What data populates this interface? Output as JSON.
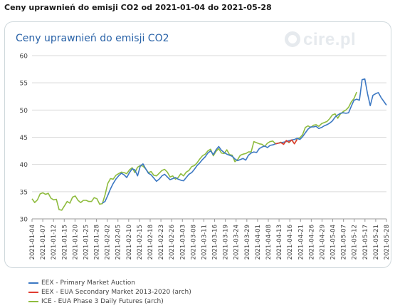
{
  "page_title": "Ceny uprawnień do emisji CO2 od 2021-01-04 do 2021-05-28",
  "logo_text": "cire.pl",
  "chart_data": {
    "type": "line",
    "title": "Ceny uprawnień do emisji CO2",
    "ylim": [
      30,
      60
    ],
    "yticks": [
      30,
      35,
      40,
      45,
      50,
      55,
      60
    ],
    "grid": "horizontal",
    "legend_position": "bottom-left",
    "x_tick_labels": [
      "2021-01-04",
      "2021-01-07",
      "2021-01-12",
      "2021-01-15",
      "2021-01-20",
      "2021-01-25",
      "2021-01-28",
      "2021-02-02",
      "2021-02-05",
      "2021-02-10",
      "2021-02-15",
      "2021-02-18",
      "2021-02-23",
      "2021-02-26",
      "2021-03-03",
      "2021-03-08",
      "2021-03-11",
      "2021-03-16",
      "2021-03-19",
      "2021-03-24",
      "2021-03-29",
      "2021-04-01",
      "2021-04-08",
      "2021-04-13",
      "2021-04-16",
      "2021-04-21",
      "2021-04-26",
      "2021-04-29",
      "2021-05-04",
      "2021-05-07",
      "2021-05-12",
      "2021-05-17",
      "2021-05-21",
      "2021-05-28"
    ],
    "series": [
      {
        "name": "EEX - Primary Market Auction",
        "color": "#3c78c3",
        "points": [
          [
            26,
            32.9
          ],
          [
            27,
            33.2
          ],
          [
            28,
            34.3
          ],
          [
            29,
            35.5
          ],
          [
            30,
            36.5
          ],
          [
            31,
            37.3
          ],
          [
            32,
            37.9
          ],
          [
            33,
            38.4
          ],
          [
            34,
            38.1
          ],
          [
            35,
            37.6
          ],
          [
            36,
            38.5
          ],
          [
            37,
            39.2
          ],
          [
            38,
            39.0
          ],
          [
            39,
            37.9
          ],
          [
            40,
            39.7
          ],
          [
            41,
            40.1
          ],
          [
            42,
            39.2
          ],
          [
            43,
            38.4
          ],
          [
            44,
            38.1
          ],
          [
            45,
            37.5
          ],
          [
            46,
            36.9
          ],
          [
            47,
            37.3
          ],
          [
            48,
            37.9
          ],
          [
            49,
            38.2
          ],
          [
            50,
            37.7
          ],
          [
            51,
            37.2
          ],
          [
            52,
            37.4
          ],
          [
            53,
            37.6
          ],
          [
            54,
            37.3
          ],
          [
            55,
            37.1
          ],
          [
            56,
            37.0
          ],
          [
            57,
            37.6
          ],
          [
            58,
            38.2
          ],
          [
            59,
            38.5
          ],
          [
            60,
            39.1
          ],
          [
            61,
            39.8
          ],
          [
            62,
            40.3
          ],
          [
            63,
            40.9
          ],
          [
            64,
            41.4
          ],
          [
            65,
            42.1
          ],
          [
            66,
            42.5
          ],
          [
            67,
            41.8
          ],
          [
            68,
            42.7
          ],
          [
            69,
            43.3
          ],
          [
            70,
            42.6
          ],
          [
            71,
            42.2
          ],
          [
            72,
            41.9
          ],
          [
            73,
            41.7
          ],
          [
            74,
            41.5
          ],
          [
            75,
            41.0
          ],
          [
            76,
            40.7
          ],
          [
            77,
            40.9
          ],
          [
            78,
            41.1
          ],
          [
            79,
            40.8
          ],
          [
            80,
            41.7
          ],
          [
            81,
            42.1
          ],
          [
            82,
            42.3
          ],
          [
            83,
            42.2
          ],
          [
            84,
            42.9
          ],
          [
            85,
            43.2
          ],
          [
            86,
            43.4
          ],
          [
            87,
            43.1
          ],
          [
            88,
            43.5
          ],
          [
            89,
            43.6
          ],
          [
            90,
            43.8
          ],
          [
            91,
            43.9
          ],
          [
            92,
            44.0
          ],
          [
            93,
            44.1
          ],
          [
            94,
            44.2
          ],
          [
            95,
            44.4
          ],
          [
            96,
            44.5
          ],
          [
            97,
            44.6
          ],
          [
            98,
            44.8
          ],
          [
            99,
            44.6
          ],
          [
            100,
            45.1
          ],
          [
            101,
            45.8
          ],
          [
            102,
            46.5
          ],
          [
            103,
            46.9
          ],
          [
            104,
            46.9
          ],
          [
            105,
            47.0
          ],
          [
            106,
            46.6
          ],
          [
            107,
            46.8
          ],
          [
            108,
            47.1
          ],
          [
            109,
            47.3
          ],
          [
            110,
            47.6
          ],
          [
            111,
            48.0
          ],
          [
            112,
            48.7
          ],
          [
            113,
            49.1
          ],
          [
            114,
            49.4
          ],
          [
            115,
            49.5
          ],
          [
            116,
            49.4
          ],
          [
            117,
            49.5
          ],
          [
            118,
            50.7
          ],
          [
            119,
            51.8
          ],
          [
            120,
            52.0
          ],
          [
            121,
            51.8
          ],
          [
            122,
            55.6
          ],
          [
            123,
            55.7
          ],
          [
            124,
            53.0
          ],
          [
            125,
            50.8
          ],
          [
            126,
            52.7
          ],
          [
            127,
            53.0
          ],
          [
            128,
            53.2
          ],
          [
            129,
            52.3
          ],
          [
            130,
            51.6
          ],
          [
            131,
            50.9
          ]
        ]
      },
      {
        "name": "EEX - EUA Secondary Market 2013-2020 (arch)",
        "color": "#e03c31",
        "points": [
          [
            90,
            43.8
          ],
          [
            91,
            43.9
          ],
          [
            92,
            44.0
          ],
          [
            93,
            43.7
          ],
          [
            94,
            44.4
          ],
          [
            95,
            44.1
          ],
          [
            96,
            44.5
          ],
          [
            97,
            43.8
          ],
          [
            98,
            44.6
          ]
        ]
      },
      {
        "name": "ICE - EUA Phase 3 Daily Futures (arch)",
        "color": "#8fbc3f",
        "points": [
          [
            0,
            33.7
          ],
          [
            1,
            33.0
          ],
          [
            2,
            33.5
          ],
          [
            3,
            34.6
          ],
          [
            4,
            34.8
          ],
          [
            5,
            34.5
          ],
          [
            6,
            34.7
          ],
          [
            7,
            33.8
          ],
          [
            8,
            33.5
          ],
          [
            9,
            33.6
          ],
          [
            10,
            31.7
          ],
          [
            11,
            31.6
          ],
          [
            12,
            32.4
          ],
          [
            13,
            33.2
          ],
          [
            14,
            32.9
          ],
          [
            15,
            34.0
          ],
          [
            16,
            34.2
          ],
          [
            17,
            33.4
          ],
          [
            18,
            33.0
          ],
          [
            19,
            33.4
          ],
          [
            20,
            33.4
          ],
          [
            21,
            33.2
          ],
          [
            22,
            33.2
          ],
          [
            23,
            33.9
          ],
          [
            24,
            33.7
          ],
          [
            25,
            32.7
          ],
          [
            26,
            32.8
          ],
          [
            27,
            34.4
          ],
          [
            28,
            36.5
          ],
          [
            29,
            37.4
          ],
          [
            30,
            37.3
          ],
          [
            31,
            38.0
          ],
          [
            32,
            38.3
          ],
          [
            33,
            38.6
          ],
          [
            34,
            38.5
          ],
          [
            35,
            38.3
          ],
          [
            36,
            39.0
          ],
          [
            37,
            39.4
          ],
          [
            38,
            38.5
          ],
          [
            39,
            39.5
          ],
          [
            40,
            39.8
          ],
          [
            41,
            39.7
          ],
          [
            42,
            39.2
          ],
          [
            43,
            38.5
          ],
          [
            44,
            38.7
          ],
          [
            45,
            38.0
          ],
          [
            46,
            37.9
          ],
          [
            47,
            38.4
          ],
          [
            48,
            38.9
          ],
          [
            49,
            39.1
          ],
          [
            50,
            38.6
          ],
          [
            51,
            37.7
          ],
          [
            52,
            37.9
          ],
          [
            53,
            37.3
          ],
          [
            54,
            37.6
          ],
          [
            55,
            38.3
          ],
          [
            56,
            37.9
          ],
          [
            57,
            38.6
          ],
          [
            58,
            38.9
          ],
          [
            59,
            39.6
          ],
          [
            60,
            39.8
          ],
          [
            61,
            40.3
          ],
          [
            62,
            41.0
          ],
          [
            63,
            41.6
          ],
          [
            64,
            41.9
          ],
          [
            65,
            42.5
          ],
          [
            66,
            42.8
          ],
          [
            67,
            41.6
          ],
          [
            68,
            42.4
          ],
          [
            69,
            42.9
          ],
          [
            70,
            42.1
          ],
          [
            71,
            42.0
          ],
          [
            72,
            42.7
          ],
          [
            73,
            41.8
          ],
          [
            74,
            41.7
          ],
          [
            75,
            40.5
          ],
          [
            76,
            40.9
          ],
          [
            77,
            41.7
          ],
          [
            78,
            41.9
          ],
          [
            79,
            42.0
          ],
          [
            80,
            42.3
          ],
          [
            81,
            42.3
          ],
          [
            82,
            44.2
          ],
          [
            83,
            44.0
          ],
          [
            84,
            43.8
          ],
          [
            85,
            43.7
          ],
          [
            86,
            43.3
          ],
          [
            87,
            43.9
          ],
          [
            88,
            44.2
          ],
          [
            89,
            44.3
          ],
          [
            90,
            43.8
          ],
          [
            91,
            43.9
          ],
          [
            92,
            44.1
          ],
          [
            93,
            43.7
          ],
          [
            94,
            44.4
          ],
          [
            95,
            44.0
          ],
          [
            96,
            44.5
          ],
          [
            97,
            43.8
          ],
          [
            98,
            44.7
          ],
          [
            99,
            44.9
          ],
          [
            100,
            45.5
          ],
          [
            101,
            46.8
          ],
          [
            102,
            47.1
          ],
          [
            103,
            46.8
          ],
          [
            104,
            47.2
          ],
          [
            105,
            47.3
          ],
          [
            106,
            47.0
          ],
          [
            107,
            47.5
          ],
          [
            108,
            47.7
          ],
          [
            109,
            47.9
          ],
          [
            110,
            48.4
          ],
          [
            111,
            49.1
          ],
          [
            112,
            49.3
          ],
          [
            113,
            48.5
          ],
          [
            114,
            49.3
          ],
          [
            115,
            49.7
          ],
          [
            116,
            50.0
          ],
          [
            117,
            50.5
          ],
          [
            118,
            51.5
          ],
          [
            119,
            52.1
          ],
          [
            120,
            53.3
          ]
        ]
      }
    ]
  }
}
